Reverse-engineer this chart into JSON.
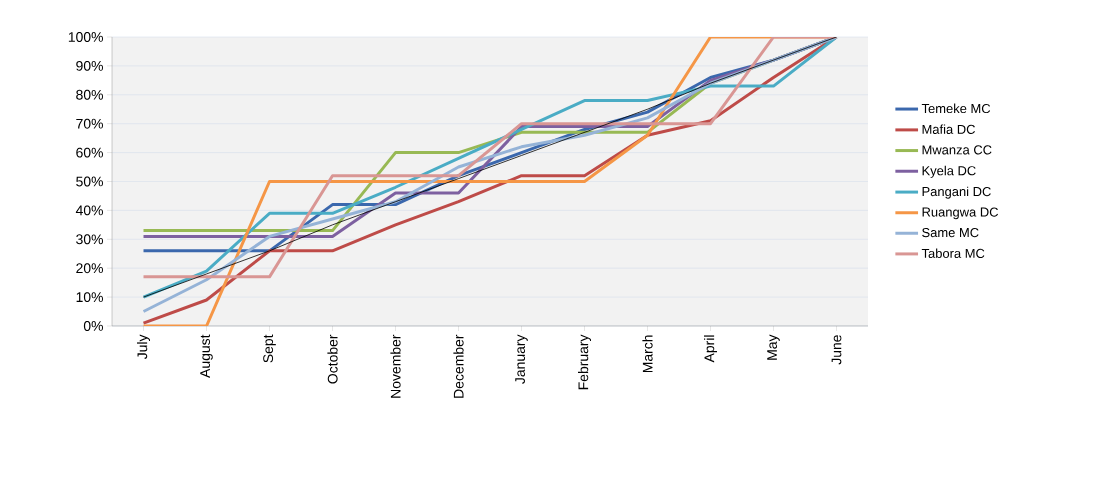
{
  "chart_data": {
    "type": "line",
    "categories": [
      "July",
      "August",
      "Sept",
      "October",
      "November",
      "December",
      "January",
      "February",
      "March",
      "April",
      "May",
      "June"
    ],
    "ylim": [
      0,
      100
    ],
    "yticks": [
      {
        "value": 0,
        "label": "0%"
      },
      {
        "value": 10,
        "label": "10%"
      },
      {
        "value": 20,
        "label": "20%"
      },
      {
        "value": 30,
        "label": "30%"
      },
      {
        "value": 40,
        "label": "40%"
      },
      {
        "value": 50,
        "label": "50%"
      },
      {
        "value": 60,
        "label": "60%"
      },
      {
        "value": 70,
        "label": "70%"
      },
      {
        "value": 80,
        "label": "80%"
      },
      {
        "value": 90,
        "label": "90%"
      },
      {
        "value": 100,
        "label": "100%"
      }
    ],
    "grid": "y",
    "legend": "right",
    "marker": "none",
    "line_style": "solid",
    "series": [
      {
        "name": "Temeke MC",
        "color": "#3b68ad",
        "values": [
          26,
          26,
          26,
          42,
          42,
          52,
          60,
          68,
          74,
          86,
          92,
          100
        ]
      },
      {
        "name": "Mafia DC",
        "color": "#be4b48",
        "values": [
          1,
          9,
          26,
          26,
          35,
          43,
          52,
          52,
          66,
          71,
          86,
          100
        ]
      },
      {
        "name": "Mwanza CC",
        "color": "#98b954",
        "values": [
          33,
          33,
          33,
          33,
          60,
          60,
          67,
          67,
          67,
          84,
          92,
          100
        ]
      },
      {
        "name": "Kyela DC",
        "color": "#7d60a0",
        "values": [
          31,
          31,
          31,
          31,
          46,
          46,
          69,
          69,
          69,
          85,
          92,
          100
        ]
      },
      {
        "name": "Pangani DC",
        "color": "#4aacc5",
        "values": [
          10,
          19,
          39,
          39,
          48,
          58,
          68,
          78,
          78,
          83,
          83,
          100
        ]
      },
      {
        "name": "Ruangwa DC",
        "color": "#f59646",
        "values": [
          0,
          0,
          50,
          50,
          50,
          50,
          50,
          50,
          66,
          100,
          100,
          100
        ]
      },
      {
        "name": "Same MC",
        "color": "#95b3d7",
        "values": [
          5,
          16,
          31,
          37,
          43,
          55,
          62,
          66,
          72,
          84,
          92,
          100
        ]
      },
      {
        "name": "Tabora MC",
        "color": "#d99694",
        "values": [
          17,
          17,
          17,
          52,
          52,
          52,
          70,
          70,
          70,
          70,
          100,
          100
        ]
      },
      {
        "type": "line",
        "color": "#000000",
        "values": [
          10,
          18,
          26,
          35,
          43,
          51,
          59,
          67,
          75,
          84,
          92,
          100
        ]
      }
    ]
  }
}
